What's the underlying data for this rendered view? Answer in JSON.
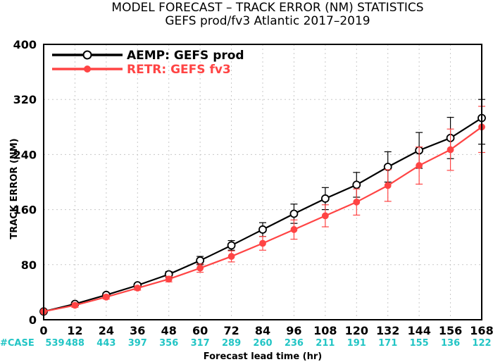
{
  "chart_data": {
    "type": "line",
    "title": "MODEL FORECAST – TRACK ERROR (NM) STATISTICS",
    "subtitle": "GEFS prod/fv3 Atlantic 2017–2019",
    "xlabel": "Forecast lead time (hr)",
    "ylabel": "TRACK ERROR (NM)",
    "x": [
      0,
      12,
      24,
      36,
      48,
      60,
      72,
      84,
      96,
      108,
      120,
      132,
      144,
      156,
      168
    ],
    "xlim": [
      0,
      168
    ],
    "ylim": [
      0,
      400
    ],
    "yticks": [
      0,
      80,
      160,
      240,
      320,
      400
    ],
    "grid": true,
    "legend_position": "top-left",
    "case_label": "#CASE",
    "case_counts": [
      "539",
      "488",
      "443",
      "397",
      "356",
      "317",
      "289",
      "260",
      "236",
      "211",
      "191",
      "171",
      "155",
      "136",
      "122"
    ],
    "series": [
      {
        "name": "AEMP: GEFS prod",
        "color": "#000000",
        "marker": "open-circle",
        "values": [
          12,
          23,
          36,
          50,
          66,
          86,
          108,
          131,
          154,
          176,
          196,
          222,
          246,
          264,
          293
        ],
        "err_lo": [
          12,
          20,
          33,
          47,
          62,
          80,
          101,
          121,
          140,
          160,
          178,
          200,
          220,
          234,
          255
        ],
        "err_hi": [
          12,
          26,
          39,
          53,
          70,
          92,
          115,
          141,
          168,
          192,
          214,
          244,
          272,
          294,
          320
        ]
      },
      {
        "name": "RETR: GEFS fv3",
        "color": "#ff4444",
        "marker": "filled-circle",
        "values": [
          12,
          21,
          33,
          46,
          59,
          75,
          92,
          111,
          131,
          151,
          171,
          195,
          224,
          247,
          280
        ],
        "err_lo": [
          12,
          18,
          30,
          43,
          55,
          69,
          84,
          101,
          117,
          135,
          152,
          172,
          197,
          217,
          243
        ],
        "err_hi": [
          12,
          24,
          36,
          49,
          63,
          81,
          100,
          121,
          145,
          167,
          190,
          218,
          251,
          277,
          310
        ]
      }
    ]
  }
}
